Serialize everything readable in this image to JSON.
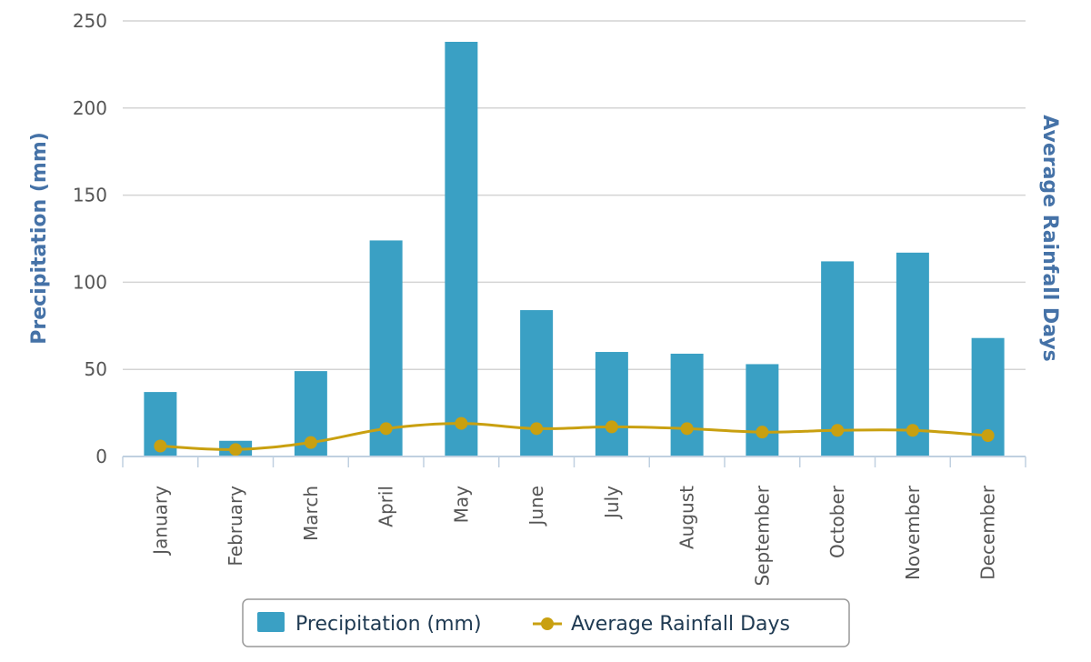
{
  "chart_data": {
    "type": "bar",
    "categories": [
      "January",
      "February",
      "March",
      "April",
      "May",
      "June",
      "July",
      "August",
      "September",
      "October",
      "November",
      "December"
    ],
    "series": [
      {
        "name": "Precipitation (mm)",
        "type": "bar",
        "axis": "left",
        "color": "#3aa0c4",
        "values": [
          37,
          9,
          49,
          124,
          238,
          84,
          60,
          59,
          53,
          112,
          117,
          68
        ]
      },
      {
        "name": "Average Rainfall Days",
        "type": "line",
        "axis": "right",
        "color": "#c9a010",
        "values": [
          6,
          4,
          8,
          16,
          19,
          16,
          17,
          16,
          14,
          15,
          15,
          12
        ]
      }
    ],
    "ylabel": "Precipitation (mm)",
    "y2label": "Average Rainfall Days",
    "ylim": [
      0,
      250
    ],
    "yticks": [
      0,
      50,
      100,
      150,
      200,
      250
    ],
    "grid": true,
    "legend_position": "bottom-center"
  }
}
